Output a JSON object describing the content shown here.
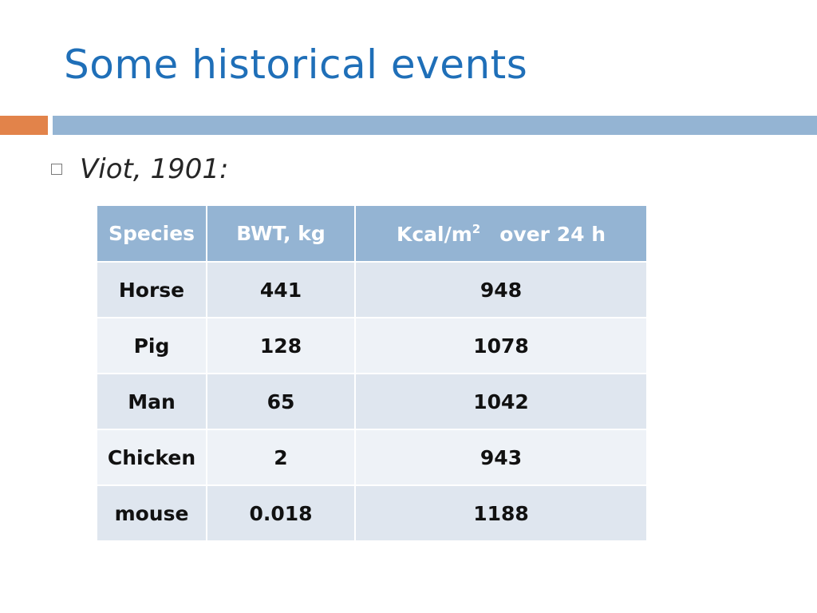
{
  "slide": {
    "title": "Some historical events",
    "bullet": "Viot, 1901:"
  },
  "table": {
    "headers": {
      "species": "Species",
      "bwt": "BWT, kg",
      "kcal_base": "Kcal/m",
      "kcal_sup": "2",
      "kcal_suffix": "over 24 h"
    },
    "rows": [
      {
        "species": "Horse",
        "bwt": "441",
        "kcal": "948"
      },
      {
        "species": "Pig",
        "bwt": "128",
        "kcal": "1078"
      },
      {
        "species": "Man",
        "bwt": "65",
        "kcal": "1042"
      },
      {
        "species": "Chicken",
        "bwt": "2",
        "kcal": "943"
      },
      {
        "species": "mouse",
        "bwt": "0.018",
        "kcal": "1188"
      }
    ]
  },
  "colors": {
    "title": "#1f6fb8",
    "accent_orange": "#e2834a",
    "accent_blue": "#94b4d3",
    "row_dark": "#dfe6ef",
    "row_light": "#eef2f7"
  }
}
